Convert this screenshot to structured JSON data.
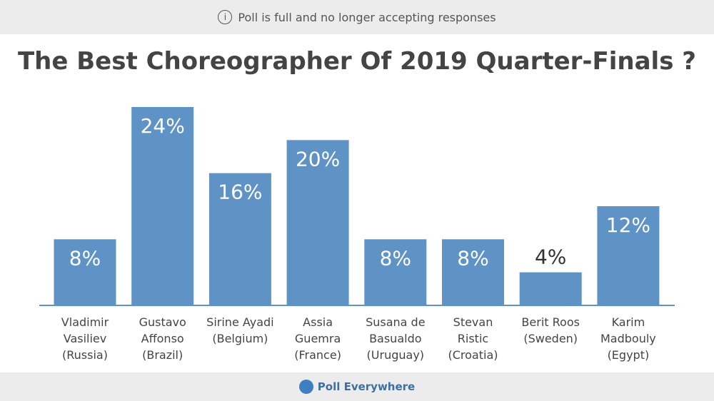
{
  "banner": "Poll is full and no longer accepting responses",
  "footer": "Poll Everywhere",
  "chart_data": {
    "type": "bar",
    "title": "The Best Choreographer Of 2019 Quarter-Finals ?",
    "categories": [
      "Vladimir Vasiliev (Russia)",
      "Gustavo Affonso (Brazil)",
      "Sirine Ayadi (Belgium)",
      "Assia Guemra (France)",
      "Susana de Basualdo (Uruguay)",
      "Stevan Ristic (Croatia)",
      "Berit Roos (Sweden)",
      "Karim Madbouly (Egypt)"
    ],
    "values": [
      8,
      24,
      16,
      20,
      8,
      8,
      4,
      12
    ],
    "value_labels": [
      "8%",
      "24%",
      "16%",
      "20%",
      "8%",
      "8%",
      "4%",
      "12%"
    ],
    "color": "#5f93c6"
  }
}
